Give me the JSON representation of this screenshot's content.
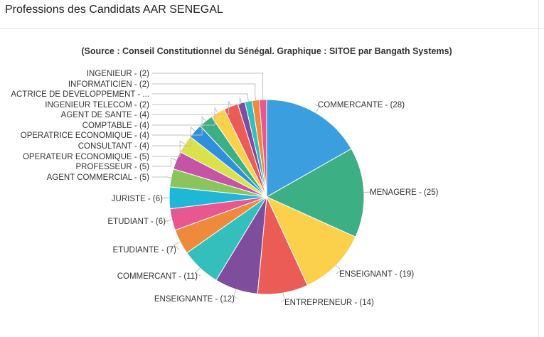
{
  "header": {
    "title": "Professions des Candidats AAR SENEGAL"
  },
  "chart_data": {
    "type": "pie",
    "title": "(Source : Conseil Constitutionnel du Sénégal. Graphique : SITOE par Bangath Systems)",
    "slices": [
      {
        "label": "COMMERCANTE - (28)",
        "value": 28,
        "color": "#3b9fdf"
      },
      {
        "label": "MENAGERE - (25)",
        "value": 25,
        "color": "#3daf84"
      },
      {
        "label": "ENSEIGNANT - (19)",
        "value": 19,
        "color": "#fbd14b"
      },
      {
        "label": "ENTREPRENEUR - (14)",
        "value": 14,
        "color": "#ea5c55"
      },
      {
        "label": "ENSEIGNANTE - (12)",
        "value": 12,
        "color": "#7e4d9c"
      },
      {
        "label": "COMMERCANT - (11)",
        "value": 11,
        "color": "#34bfbd"
      },
      {
        "label": "ETUDIANTE - (7)",
        "value": 7,
        "color": "#ef8a3c"
      },
      {
        "label": "ETUDIANT - (6)",
        "value": 6,
        "color": "#e8578f"
      },
      {
        "label": "JURISTE - (6)",
        "value": 6,
        "color": "#1fb7d8"
      },
      {
        "label": "AGENT COMMERCIAL - (5)",
        "value": 5,
        "color": "#8bc45a"
      },
      {
        "label": "PROFESSEUR - (5)",
        "value": 5,
        "color": "#c554a6"
      },
      {
        "label": "OPERATEUR ECONOMIQUE - (5)",
        "value": 5,
        "color": "#d9e14b"
      },
      {
        "label": "CONSULTANT - (4)",
        "value": 4,
        "color": "#2f8fdc"
      },
      {
        "label": "OPERATRICE ECONOMIQUE - (4)",
        "value": 4,
        "color": "#3daf84"
      },
      {
        "label": "COMPTABLE - (4)",
        "value": 4,
        "color": "#fbd14b"
      },
      {
        "label": "AGENT DE SANTE - (4)",
        "value": 4,
        "color": "#ea5c55"
      },
      {
        "label": "INGENIEUR TELECOM - (2)",
        "value": 2,
        "color": "#7e4d9c"
      },
      {
        "label": "ACTRICE DE DEVELOPPEMENT - ...",
        "value": 2,
        "color": "#34bfbd"
      },
      {
        "label": "INFORMATICIEN - (2)",
        "value": 2,
        "color": "#ef8a3c"
      },
      {
        "label": "INGENIEUR - (2)",
        "value": 2,
        "color": "#e8578f"
      }
    ]
  }
}
